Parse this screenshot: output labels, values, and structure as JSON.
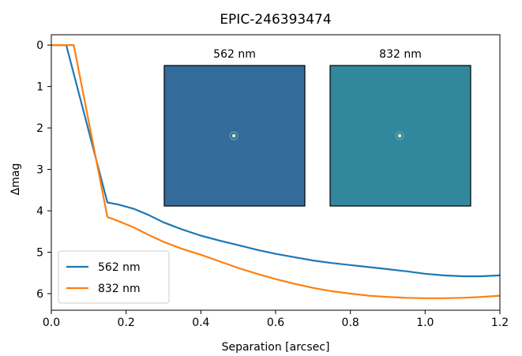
{
  "chart_data": {
    "type": "line",
    "title": "EPIC-246393474",
    "xlabel": "Separation [arcsec]",
    "ylabel": "Δmag",
    "xlim": [
      0.0,
      1.2
    ],
    "ylim": [
      6.4,
      -0.25
    ],
    "y_inverted": true,
    "x_ticks": [
      0.0,
      0.2,
      0.4,
      0.6,
      0.8,
      1.0,
      1.2
    ],
    "x_tick_labels": [
      "0.0",
      "0.2",
      "0.4",
      "0.6",
      "0.8",
      "1.0",
      "1.2"
    ],
    "y_ticks": [
      0,
      1,
      2,
      3,
      4,
      5,
      6
    ],
    "y_tick_labels": [
      "0",
      "1",
      "2",
      "3",
      "4",
      "5",
      "6"
    ],
    "grid": false,
    "legend_position": "lower-left",
    "series": [
      {
        "name": "562 nm",
        "color": "#1f77b4",
        "x": [
          0.0,
          0.04,
          0.15,
          0.18,
          0.22,
          0.26,
          0.3,
          0.35,
          0.4,
          0.45,
          0.5,
          0.55,
          0.6,
          0.65,
          0.7,
          0.75,
          0.8,
          0.85,
          0.9,
          0.95,
          1.0,
          1.05,
          1.1,
          1.15,
          1.2
        ],
        "y": [
          0.0,
          0.0,
          3.8,
          3.85,
          3.95,
          4.1,
          4.28,
          4.45,
          4.6,
          4.72,
          4.83,
          4.94,
          5.04,
          5.12,
          5.2,
          5.26,
          5.31,
          5.36,
          5.41,
          5.46,
          5.52,
          5.56,
          5.58,
          5.58,
          5.56
        ]
      },
      {
        "name": "832 nm",
        "color": "#ff7f0e",
        "x": [
          0.0,
          0.06,
          0.15,
          0.18,
          0.22,
          0.26,
          0.3,
          0.35,
          0.4,
          0.45,
          0.5,
          0.55,
          0.6,
          0.65,
          0.7,
          0.75,
          0.8,
          0.85,
          0.9,
          0.95,
          1.0,
          1.05,
          1.1,
          1.15,
          1.2
        ],
        "y": [
          0.0,
          0.0,
          4.15,
          4.25,
          4.4,
          4.58,
          4.75,
          4.92,
          5.06,
          5.22,
          5.38,
          5.52,
          5.65,
          5.76,
          5.86,
          5.94,
          6.0,
          6.05,
          6.08,
          6.1,
          6.11,
          6.11,
          6.1,
          6.08,
          6.05
        ]
      }
    ],
    "insets": [
      {
        "label": "562 nm",
        "background": "#336b9b",
        "source_color": "#d8f0d0"
      },
      {
        "label": "832 nm",
        "background": "#31889d",
        "source_color": "#e0f5c8"
      }
    ]
  }
}
